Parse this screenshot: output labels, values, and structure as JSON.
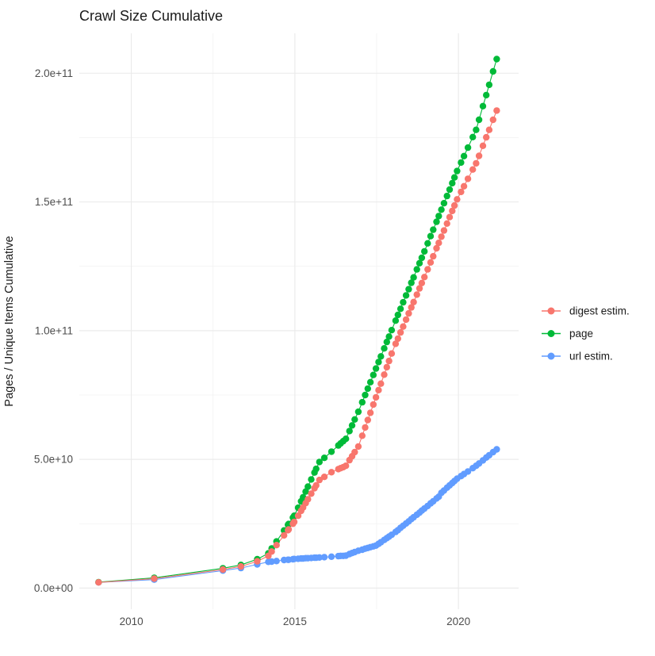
{
  "title": "Crawl Size Cumulative",
  "background_color": "#FFFFFF",
  "grid_major_color": "#EBEBEB",
  "grid_minor_color": "#F2F2F2",
  "tick_text_color": "#4D4D4D",
  "title_text_color": "#1A1A1A",
  "chart_data": {
    "type": "line",
    "title": "Crawl Size Cumulative",
    "xlabel": "",
    "ylabel": "Pages / Unique Items Cumulative",
    "y_unit": "items, values stored as billions (1e9)",
    "x_unit": "calendar year (decimal)",
    "grid": true,
    "legend_position": "right",
    "xlim": [
      2008.41,
      2021.84
    ],
    "ylim_e9": [
      -8.2,
      215.5
    ],
    "x_ticks": {
      "values": [
        2010,
        2015,
        2020
      ],
      "labels": [
        "2010",
        "2015",
        "2020"
      ]
    },
    "x_minor_ticks": [
      2012.5,
      2017.5
    ],
    "y_ticks": {
      "values_e9": [
        0,
        50,
        100,
        150,
        200
      ],
      "labels": [
        "0.0e+00",
        "5.0e+10",
        "1.0e+11",
        "1.5e+11",
        "2.0e+11"
      ]
    },
    "y_minor_ticks_e9": [
      25,
      75,
      125,
      175
    ],
    "x": [
      2009.0,
      2010.7,
      2012.8,
      2013.35,
      2013.85,
      2014.19,
      2014.29,
      2014.44,
      2014.67,
      2014.79,
      2014.81,
      2014.94,
      2014.98,
      2015.1,
      2015.19,
      2015.25,
      2015.33,
      2015.4,
      2015.5,
      2015.6,
      2015.65,
      2015.75,
      2015.9,
      2016.12,
      2016.33,
      2016.4,
      2016.48,
      2016.56,
      2016.67,
      2016.75,
      2016.83,
      2016.94,
      2017.06,
      2017.15,
      2017.23,
      2017.31,
      2017.4,
      2017.48,
      2017.56,
      2017.63,
      2017.73,
      2017.81,
      2017.88,
      2017.96,
      2018.08,
      2018.15,
      2018.23,
      2018.31,
      2018.4,
      2018.48,
      2018.56,
      2018.63,
      2018.73,
      2018.81,
      2018.88,
      2018.96,
      2019.06,
      2019.15,
      2019.23,
      2019.33,
      2019.4,
      2019.48,
      2019.56,
      2019.65,
      2019.73,
      2019.81,
      2019.88,
      2019.96,
      2020.08,
      2020.17,
      2020.29,
      2020.44,
      2020.54,
      2020.63,
      2020.75,
      2020.85,
      2020.94,
      2021.06,
      2021.17
    ],
    "series": [
      {
        "name": "digest estim.",
        "color": "#F8766D",
        "values_e9": [
          2.2,
          3.7,
          7.2,
          8.4,
          10.4,
          12.5,
          14.2,
          16.7,
          20.5,
          22.5,
          22.8,
          25.0,
          25.7,
          28.1,
          30.0,
          31.3,
          33.0,
          34.5,
          36.7,
          38.8,
          39.9,
          42.0,
          43.2,
          45.0,
          46.2,
          46.6,
          47.0,
          47.5,
          49.7,
          51.2,
          52.8,
          55.0,
          59.2,
          62.4,
          65.3,
          68.1,
          71.3,
          74.1,
          76.9,
          79.4,
          82.9,
          85.8,
          88.2,
          91.1,
          94.9,
          96.9,
          99.3,
          101.6,
          104.3,
          106.7,
          109.0,
          111.1,
          114.0,
          116.4,
          118.5,
          120.8,
          123.8,
          126.5,
          128.9,
          132.0,
          134.1,
          136.5,
          138.9,
          141.6,
          144.1,
          146.5,
          148.6,
          151.0,
          153.9,
          156.1,
          159.0,
          162.6,
          165.0,
          167.9,
          171.8,
          175.1,
          178.0,
          181.9,
          185.5
        ]
      },
      {
        "name": "page",
        "color": "#00BA38",
        "values_e9": [
          2.3,
          4.0,
          7.7,
          9.0,
          11.2,
          13.5,
          15.4,
          18.1,
          22.4,
          24.6,
          24.9,
          27.4,
          28.1,
          31.2,
          33.7,
          35.3,
          37.5,
          39.4,
          42.2,
          44.9,
          46.3,
          49.0,
          50.6,
          53.0,
          55.4,
          56.2,
          57.1,
          58.0,
          61.0,
          63.2,
          65.5,
          68.5,
          72.2,
          75.0,
          77.5,
          80.0,
          82.8,
          85.3,
          87.8,
          90.0,
          93.1,
          95.6,
          97.7,
          100.2,
          103.9,
          106.1,
          108.5,
          111.0,
          113.7,
          116.1,
          118.6,
          120.7,
          123.8,
          126.2,
          128.3,
          130.8,
          133.9,
          136.7,
          139.2,
          142.3,
          144.5,
          147.0,
          149.5,
          152.3,
          154.8,
          157.3,
          159.5,
          162.0,
          165.3,
          167.8,
          171.1,
          175.2,
          178.0,
          181.9,
          187.2,
          191.5,
          195.5,
          200.7,
          205.5
        ]
      },
      {
        "name": "url estim.",
        "color": "#619CFF",
        "values_e9": [
          2.2,
          3.3,
          6.8,
          7.8,
          9.2,
          10.2,
          10.3,
          10.5,
          10.9,
          11.0,
          11.0,
          11.2,
          11.3,
          11.4,
          11.5,
          11.5,
          11.6,
          11.6,
          11.7,
          11.8,
          11.8,
          11.9,
          12.0,
          12.2,
          12.4,
          12.5,
          12.5,
          12.6,
          13.2,
          13.6,
          14.0,
          14.5,
          14.9,
          15.3,
          15.6,
          15.9,
          16.2,
          16.5,
          17.2,
          17.8,
          18.7,
          19.4,
          20.0,
          20.7,
          21.8,
          22.5,
          23.4,
          24.2,
          25.1,
          25.9,
          26.8,
          27.5,
          28.5,
          29.3,
          30.1,
          30.9,
          31.9,
          32.9,
          33.7,
          34.8,
          35.5,
          37.0,
          37.9,
          39.0,
          39.9,
          40.8,
          41.6,
          42.5,
          43.5,
          44.3,
          45.3,
          46.6,
          47.5,
          48.4,
          49.6,
          50.7,
          51.6,
          52.8,
          53.9
        ]
      }
    ]
  }
}
